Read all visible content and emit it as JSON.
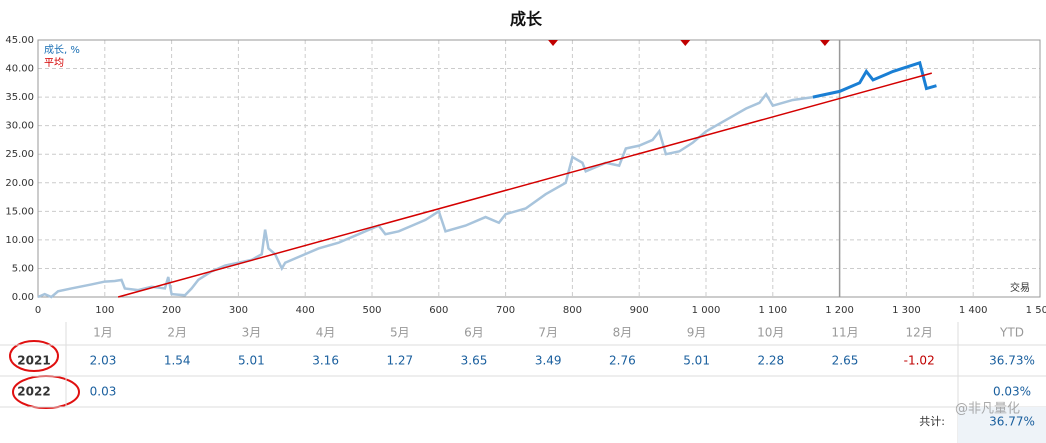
{
  "chart_data": {
    "type": "line",
    "title": "成长",
    "x_label": "交易",
    "xlim": [
      0,
      1500
    ],
    "ylim": [
      0,
      45
    ],
    "xticks": [
      0,
      100,
      200,
      300,
      400,
      500,
      600,
      700,
      800,
      900,
      {
        "value": 1000,
        "label": "1 000"
      },
      {
        "value": 1100,
        "label": "1 100"
      },
      {
        "value": 1200,
        "label": "1 200"
      },
      {
        "value": 1300,
        "label": "1 300"
      },
      {
        "value": 1400,
        "label": "1 400"
      },
      {
        "value": 1500,
        "label": "1 500"
      }
    ],
    "yticks": [
      {
        "value": 0,
        "label": "0.00"
      },
      {
        "value": 5,
        "label": "5.00"
      },
      {
        "value": 10,
        "label": "10.00"
      },
      {
        "value": 15,
        "label": "15.00"
      },
      {
        "value": 20,
        "label": "20.00"
      },
      {
        "value": 25,
        "label": "25.00"
      },
      {
        "value": 30,
        "label": "30.00"
      },
      {
        "value": 35,
        "label": "35.00"
      },
      {
        "value": 40,
        "label": "40.00"
      },
      {
        "value": 45,
        "label": "45.00"
      }
    ],
    "grid": true,
    "markers": [
      771,
      969,
      1178
    ],
    "marker_color": "#c00000",
    "divider_x": 1200,
    "series": [
      {
        "name": "成长, %",
        "color": "#a8c4dc",
        "recent_color": "#1a7fd4",
        "recent_from": 1200,
        "x": [
          0,
          10,
          20,
          30,
          50,
          80,
          100,
          115,
          125,
          130,
          150,
          170,
          190,
          195,
          200,
          220,
          230,
          240,
          260,
          280,
          300,
          320,
          335,
          340,
          345,
          355,
          365,
          370,
          390,
          420,
          450,
          480,
          510,
          520,
          540,
          560,
          580,
          600,
          610,
          640,
          670,
          690,
          700,
          730,
          760,
          790,
          800,
          815,
          820,
          850,
          870,
          880,
          900,
          920,
          930,
          940,
          960,
          980,
          1000,
          1030,
          1060,
          1080,
          1090,
          1100,
          1130,
          1160,
          1200,
          1230,
          1240,
          1250,
          1280,
          1320,
          1330,
          1345
        ],
        "values": [
          0,
          0.5,
          0,
          1,
          1.5,
          2.2,
          2.7,
          2.8,
          3.0,
          1.5,
          1.2,
          1.8,
          1.5,
          3.5,
          0.5,
          0.3,
          1.5,
          3,
          4.5,
          5.5,
          6,
          6.5,
          7.5,
          11.8,
          8.5,
          7.5,
          5,
          6,
          7,
          8.5,
          9.5,
          11,
          12.5,
          11,
          11.5,
          12.5,
          13.5,
          15,
          11.5,
          12.5,
          14,
          13,
          14.5,
          15.5,
          18,
          20,
          24.5,
          23.5,
          22,
          23.5,
          23,
          26,
          26.5,
          27.5,
          29,
          25,
          25.5,
          27,
          29,
          31,
          33,
          34,
          35.5,
          33.5,
          34.5,
          35,
          36,
          37.5,
          39.5,
          38,
          39.5,
          41,
          36.5,
          37
        ]
      },
      {
        "name": "平均",
        "color": "#d40000",
        "x": [
          120,
          1338
        ],
        "values": [
          0,
          39.2
        ]
      }
    ]
  },
  "table": {
    "header": [
      "1月",
      "2月",
      "3月",
      "4月",
      "5月",
      "6月",
      "7月",
      "8月",
      "9月",
      "10月",
      "11月",
      "12月",
      "YTD"
    ],
    "rows": [
      {
        "year": "2021",
        "months": [
          2.03,
          1.54,
          5.01,
          3.16,
          1.27,
          3.65,
          3.49,
          2.76,
          5.01,
          2.28,
          2.65,
          -1.02
        ],
        "ytd": "36.73%"
      },
      {
        "year": "2022",
        "months": [
          0.03
        ],
        "ytd": "0.03%"
      }
    ],
    "total_label": "共计:",
    "total": "36.77%"
  },
  "watermark": "@非凡量化"
}
